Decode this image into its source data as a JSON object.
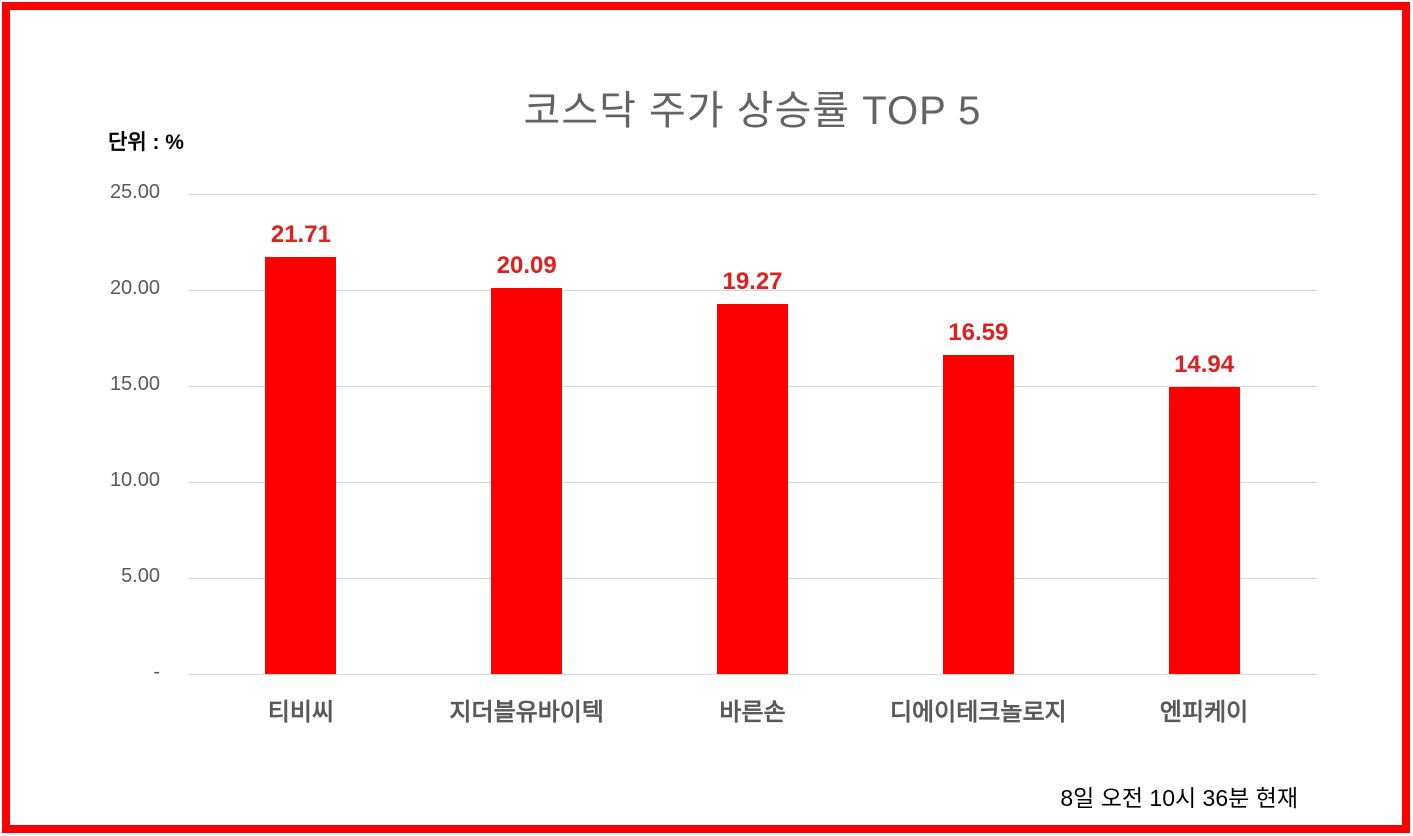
{
  "chart_data": {
    "type": "bar",
    "title": "코스닥 주가 상승률 TOP 5",
    "unit_label": "단위 : %",
    "categories": [
      "티비씨",
      "지더블유바이텍",
      "바른손",
      "디에이테크놀로지",
      "엔피케이"
    ],
    "values": [
      21.71,
      20.09,
      19.27,
      16.59,
      14.94
    ],
    "value_labels": [
      "21.71",
      "20.09",
      "19.27",
      "16.59",
      "14.94"
    ],
    "ylim": [
      0,
      25
    ],
    "y_ticks": [
      {
        "value": 25,
        "label": "25.00"
      },
      {
        "value": 20,
        "label": "20.00"
      },
      {
        "value": 15,
        "label": "15.00"
      },
      {
        "value": 10,
        "label": "10.00"
      },
      {
        "value": 5,
        "label": "5.00"
      },
      {
        "value": 0,
        "label": "-"
      }
    ],
    "xlabel": "",
    "ylabel": "",
    "grid": true,
    "legend": false,
    "bar_color": "#fe0000",
    "value_label_color": "#e02020",
    "gridline_color": "#d9d9d9",
    "axis_text_color": "#595959",
    "title_color": "#636363"
  },
  "frame": {
    "border_color": "#fe0000"
  },
  "footer": {
    "timestamp": "8일 오전 10시 36분 현재"
  }
}
